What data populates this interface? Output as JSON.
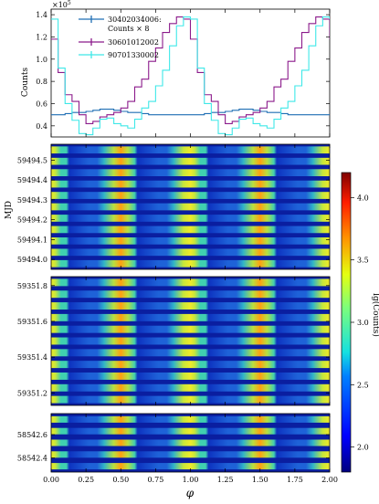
{
  "chart_data": [
    {
      "type": "line",
      "ylabel": "Counts",
      "y_multiplier": "×10",
      "y_multiplier_exp": "5",
      "ylim": [
        0.3,
        1.45
      ],
      "xlim": [
        0,
        2
      ],
      "y_ticks": [
        0.4,
        0.6,
        0.8,
        1.0,
        1.2,
        1.4
      ],
      "y_tick_labels": [
        "0.4",
        "0.6",
        "0.8",
        "1.0",
        "1.2",
        "1.4"
      ],
      "grid": false,
      "legend_position": "top-left",
      "x_phase_half": [
        0.0,
        0.05,
        0.1,
        0.15,
        0.2,
        0.25,
        0.3,
        0.35,
        0.4,
        0.45,
        0.5,
        0.55,
        0.6,
        0.65,
        0.7,
        0.75,
        0.8,
        0.85,
        0.9,
        0.95,
        1.0
      ],
      "series": [
        {
          "name": "30402034006:",
          "name_line2": "Counts × 8",
          "color": "#1f6eb4",
          "values": [
            0.5,
            0.5,
            0.51,
            0.52,
            0.52,
            0.53,
            0.54,
            0.55,
            0.55,
            0.54,
            0.53,
            0.52,
            0.52,
            0.51,
            0.5,
            0.5,
            0.5,
            0.5,
            0.5,
            0.5,
            0.5
          ]
        },
        {
          "name": "30601012002",
          "color": "#8b1a8b",
          "values": [
            1.18,
            0.88,
            0.68,
            0.62,
            0.5,
            0.42,
            0.44,
            0.48,
            0.5,
            0.52,
            0.56,
            0.62,
            0.75,
            0.82,
            0.98,
            1.1,
            1.24,
            1.32,
            1.38,
            1.36,
            1.18
          ]
        },
        {
          "name": "90701330002",
          "color": "#3ee8e8",
          "values": [
            1.36,
            0.92,
            0.6,
            0.45,
            0.33,
            0.32,
            0.38,
            0.46,
            0.47,
            0.42,
            0.4,
            0.38,
            0.46,
            0.56,
            0.62,
            0.76,
            0.9,
            1.12,
            1.3,
            1.38,
            1.36
          ]
        }
      ]
    },
    {
      "type": "heatmap",
      "ylabel": "MJD",
      "xlim": [
        0,
        2
      ],
      "ylim": [
        59493.95,
        59494.58
      ],
      "y_ticks": [
        59494.0,
        59494.1,
        59494.2,
        59494.3,
        59494.4,
        59494.5
      ],
      "y_tick_labels": [
        "59494.0",
        "59494.1",
        "59494.2",
        "59494.3",
        "59494.4",
        "59494.5"
      ],
      "row_count": 11
    },
    {
      "type": "heatmap",
      "xlim": [
        0,
        2
      ],
      "ylim": [
        59351.13,
        59351.85
      ],
      "y_ticks": [
        59351.2,
        59351.4,
        59351.6,
        59351.8
      ],
      "y_tick_labels": [
        "59351.2",
        "59351.4",
        "59351.6",
        "59351.8"
      ],
      "row_count": 11
    },
    {
      "type": "heatmap",
      "xlabel": "φ",
      "xlim": [
        0,
        2
      ],
      "ylim": [
        58542.28,
        58542.78
      ],
      "y_ticks": [
        58542.4,
        58542.6
      ],
      "y_tick_labels": [
        "58542.4",
        "58542.6"
      ],
      "x_ticks": [
        0,
        0.25,
        0.5,
        0.75,
        1.0,
        1.25,
        1.5,
        1.75,
        2.0
      ],
      "x_tick_labels": [
        "0.00",
        "0.25",
        "0.50",
        "0.75",
        "1.00",
        "1.25",
        "1.50",
        "1.75",
        "2.00"
      ],
      "row_count": 5
    }
  ],
  "colorbar": {
    "label": "lg(Counts)",
    "range": [
      1.8,
      4.2
    ],
    "ticks": [
      2.0,
      2.5,
      3.0,
      3.5,
      4.0
    ],
    "tick_labels": [
      "2.0",
      "2.5",
      "3.0",
      "3.5",
      "4.0"
    ]
  }
}
